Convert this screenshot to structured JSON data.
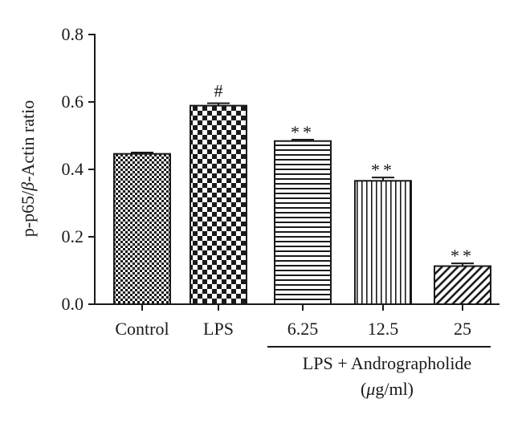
{
  "chart_data": {
    "type": "bar",
    "categories": [
      "Control",
      "LPS",
      "6.25",
      "12.5",
      "25"
    ],
    "values": [
      0.446,
      0.589,
      0.484,
      0.366,
      0.113
    ],
    "errors": [
      0.004,
      0.007,
      0.004,
      0.01,
      0.008
    ],
    "significance": [
      "",
      "#",
      "**",
      "**",
      "**"
    ],
    "ylabel_parts": [
      "p-p65/",
      "β",
      "-Actin ratio"
    ],
    "ylim": [
      0,
      0.8
    ],
    "yticks": [
      "0.0",
      "0.2",
      "0.4",
      "0.6",
      "0.8"
    ],
    "group_label_line1": "LPS + Andrographolide",
    "group_label_line2_parts": [
      "(",
      "μ",
      "g/ml)"
    ],
    "patterns": [
      "fine-checker",
      "checker",
      "horizontal-lines",
      "vertical-lines",
      "diagonal-lines"
    ],
    "colors": {
      "ink": "#1a1a1a",
      "background": "#ffffff"
    },
    "grid": false
  }
}
